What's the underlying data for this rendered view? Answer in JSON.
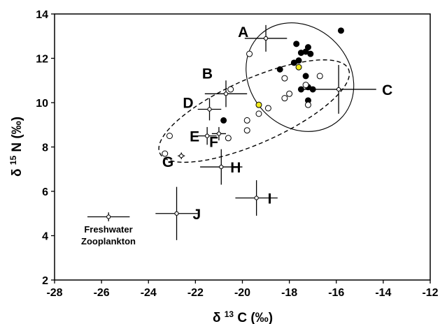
{
  "chart_data": {
    "type": "scatter",
    "xlim": [
      -28,
      -12
    ],
    "ylim": [
      2,
      14
    ],
    "x_ticks": [
      -28,
      -26,
      -24,
      -22,
      -20,
      -18,
      -16,
      -14,
      -12
    ],
    "y_ticks": [
      2,
      4,
      6,
      8,
      10,
      12,
      14
    ],
    "tick_labels_x": [
      "-28",
      "-26",
      "-24",
      "-22",
      "-20",
      "-18",
      "-16",
      "-14",
      "-12"
    ],
    "tick_labels_y": [
      "2",
      "4",
      "6",
      "8",
      "10",
      "12",
      "14"
    ],
    "xlabel": {
      "pre": "δ ",
      "sup": "13",
      "post": " C (‰)"
    },
    "ylabel": {
      "pre": "δ ",
      "sup": "15",
      "post": " N (‰)"
    },
    "grid": false,
    "error_groups": [
      {
        "label": "A",
        "x": -19.0,
        "y": 12.9,
        "xerr": 0.9,
        "yerr": 0.6
      },
      {
        "label": "B",
        "x": -20.7,
        "y": 10.4,
        "xerr": 0.9,
        "yerr": 0.6
      },
      {
        "label": "C",
        "x": -15.9,
        "y": 10.6,
        "xerr": 1.6,
        "yerr": 1.1
      },
      {
        "label": "D",
        "x": -21.4,
        "y": 9.7,
        "xerr": 0.5,
        "yerr": 0.5
      },
      {
        "label": "E",
        "x": -21.5,
        "y": 8.5,
        "xerr": 0.4,
        "yerr": 0.4
      },
      {
        "label": "F",
        "x": -21.0,
        "y": 8.6,
        "xerr": 0.3,
        "yerr": 0.3
      },
      {
        "label": "G",
        "x": -22.6,
        "y": 7.6,
        "xerr": 0.15,
        "yerr": 0.15
      },
      {
        "label": "H",
        "x": -20.9,
        "y": 7.1,
        "xerr": 0.9,
        "yerr": 0.8
      },
      {
        "label": "I",
        "x": -19.4,
        "y": 5.7,
        "xerr": 0.9,
        "yerr": 0.8
      },
      {
        "label": "J",
        "x": -22.8,
        "y": 5.0,
        "xerr": 0.9,
        "yerr": 1.2
      }
    ],
    "legend": {
      "label_lines": [
        "Freshwater",
        "Zooplankton"
      ],
      "x": -25.7,
      "y": 4.85,
      "xerr": 0.9,
      "yerr": 0.2
    },
    "series": [
      {
        "marker": "filled-black",
        "points": [
          [
            -15.8,
            13.25
          ],
          [
            -17.7,
            12.65
          ],
          [
            -17.2,
            12.5
          ],
          [
            -17.3,
            12.3
          ],
          [
            -17.5,
            12.25
          ],
          [
            -17.1,
            12.2
          ],
          [
            -17.6,
            11.9
          ],
          [
            -17.8,
            11.8
          ],
          [
            -18.4,
            11.5
          ],
          [
            -17.3,
            11.2
          ],
          [
            -17.2,
            10.7
          ],
          [
            -17.0,
            10.6
          ],
          [
            -17.5,
            10.6
          ],
          [
            -17.2,
            10.1
          ],
          [
            -20.8,
            9.2
          ]
        ]
      },
      {
        "marker": "open",
        "points": [
          [
            -19.7,
            12.2
          ],
          [
            -20.5,
            10.6
          ],
          [
            -18.2,
            11.1
          ],
          [
            -16.7,
            11.2
          ],
          [
            -17.3,
            10.8
          ],
          [
            -18.0,
            10.4
          ],
          [
            -18.2,
            10.2
          ],
          [
            -17.2,
            9.9
          ],
          [
            -19.3,
            9.5
          ],
          [
            -18.9,
            9.75
          ],
          [
            -19.8,
            9.2
          ],
          [
            -19.8,
            8.75
          ],
          [
            -20.6,
            8.4
          ],
          [
            -23.1,
            8.5
          ],
          [
            -23.3,
            7.7
          ]
        ]
      },
      {
        "marker": "filled-yellow",
        "points": [
          [
            -17.6,
            11.6
          ],
          [
            -19.3,
            9.9
          ]
        ]
      }
    ],
    "ellipses": [
      {
        "style": "solid",
        "cx": -17.55,
        "cy": 11.15,
        "rx": 2.12,
        "ry": 2.62,
        "rotation_deg": -43
      },
      {
        "style": "dashed",
        "cx": -19.5,
        "cy": 9.62,
        "rx": 4.4,
        "ry": 1.45,
        "rotation_deg": -24
      }
    ]
  }
}
